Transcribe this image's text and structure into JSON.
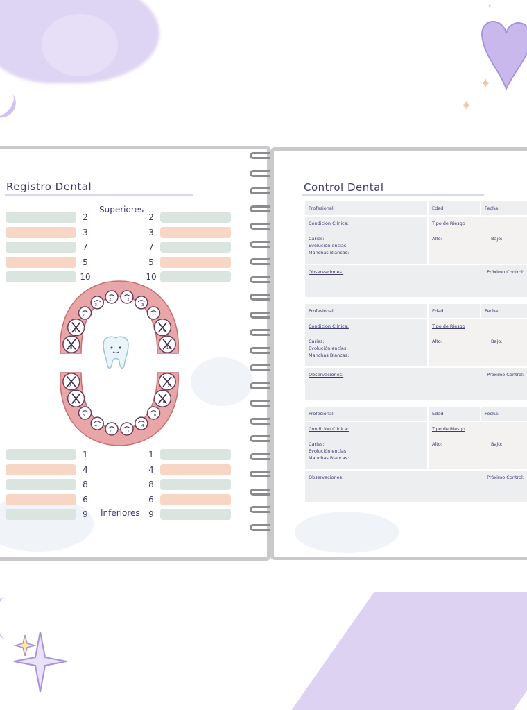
{
  "left_page": {
    "title": "Registro Dental",
    "superiores_label": "Superiores",
    "inferiores_label": "Inferiores",
    "upper_left_numbers": [
      "2",
      "3",
      "7",
      "5",
      "10"
    ],
    "upper_right_numbers": [
      "2",
      "3",
      "7",
      "5",
      "10"
    ],
    "lower_left_numbers": [
      "1",
      "4",
      "8",
      "6",
      "9"
    ],
    "lower_right_numbers": [
      "1",
      "4",
      "8",
      "6",
      "9"
    ],
    "bar_colors": [
      "mint",
      "peach",
      "mint",
      "peach",
      "mint"
    ],
    "upper_teeth_labels": [
      "10",
      "5",
      "7",
      "3",
      "2",
      "2",
      "3",
      "7",
      "5",
      "10"
    ],
    "lower_teeth_labels": [
      "9",
      "6",
      "8",
      "4",
      "1",
      "1",
      "4",
      "8",
      "6",
      "9"
    ]
  },
  "right_page": {
    "title": "Control Dental",
    "blocks": [
      {
        "profesional": "Profesional:",
        "edad": "Edad:",
        "fecha": "Fecha:",
        "condicion": "Condición Clínica:",
        "tipo": "Tipo de Riesgo",
        "caries": "Caries:",
        "evolucion": "Evolución encías:",
        "manchas": "Manchas Blancas:",
        "alto": "Alto:",
        "bajo": "Bajo:",
        "observaciones": "Observaciones:",
        "proximo": "Próximo Control:"
      },
      {
        "profesional": "Profesional:",
        "edad": "Edad:",
        "fecha": "Fecha:",
        "condicion": "Condición Clínica:",
        "tipo": "Tipo de Riesgo",
        "caries": "Caries:",
        "evolucion": "Evolución encías:",
        "manchas": "Manchas Blancas:",
        "alto": "Alto:",
        "bajo": "Bajo:",
        "observaciones": "Observaciones:",
        "proximo": "Próximo Control:"
      },
      {
        "profesional": "Profesional:",
        "edad": "Edad:",
        "fecha": "Fecha:",
        "condicion": "Condición Clínica:",
        "tipo": "Tipo de Riesgo",
        "caries": "Caries:",
        "evolucion": "Evolución encías:",
        "manchas": "Manchas Blancas:",
        "alto": "Alto:",
        "bajo": "Bajo:",
        "observaciones": "Observaciones:",
        "proximo": "Próximo Control:"
      }
    ]
  },
  "colors": {
    "mint": "#dbe5e0",
    "peach": "#f8d6c6",
    "lavender": "#d9cdf1",
    "gum": "#e8a6a8",
    "ink": "#3d3a6e"
  }
}
